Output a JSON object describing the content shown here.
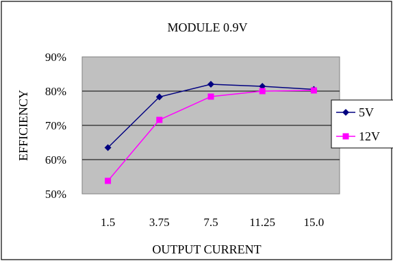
{
  "chart_data": {
    "type": "line",
    "title": "MODULE 0.9V",
    "xlabel": "OUTPUT CURRENT",
    "ylabel": "EFFICIENCY",
    "categories": [
      "1.5",
      "3.75",
      "7.5",
      "11.25",
      "15.0"
    ],
    "y_ticks": [
      "50%",
      "60%",
      "70%",
      "80%",
      "90%"
    ],
    "ylim": [
      50,
      90
    ],
    "grid": true,
    "legend_position": "right",
    "series": [
      {
        "name": "5V",
        "values": [
          63.5,
          78.3,
          82.0,
          81.4,
          80.5
        ],
        "color": "#000080",
        "marker": "diamond"
      },
      {
        "name": "12V",
        "values": [
          53.8,
          71.6,
          78.4,
          80.0,
          80.2
        ],
        "color": "#ff00ff",
        "marker": "square"
      }
    ],
    "plot_background": "#c0c0c0"
  }
}
